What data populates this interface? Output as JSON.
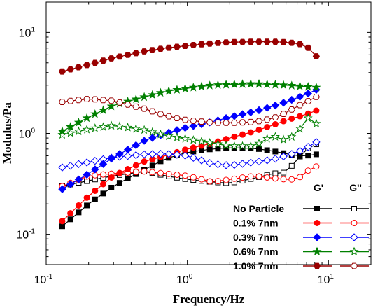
{
  "chart_data": {
    "type": "scatter",
    "xlabel": "Frequency/Hz",
    "ylabel": "Modulus/Pa",
    "x_scale": "log",
    "y_scale": "log",
    "xlim": [
      0.1,
      20
    ],
    "ylim": [
      0.05,
      20
    ],
    "x_ticks": [
      {
        "value": 0.1,
        "base": "10",
        "exp": "-1"
      },
      {
        "value": 1,
        "base": "10",
        "exp": "0"
      },
      {
        "value": 10,
        "base": "10",
        "exp": "1"
      }
    ],
    "y_ticks": [
      {
        "value": 0.1,
        "base": "10",
        "exp": "-1"
      },
      {
        "value": 1,
        "base": "10",
        "exp": "0"
      },
      {
        "value": 10,
        "base": "10",
        "exp": "1"
      }
    ],
    "legend": {
      "placement": "bottom-right",
      "col_headers": [
        "G'",
        "G''"
      ]
    },
    "series": [
      {
        "name": "No Particle",
        "color": "#000000",
        "marker": "square",
        "gp": [
          [
            0.13,
            0.12
          ],
          [
            0.2,
            0.2
          ],
          [
            0.3,
            0.3
          ],
          [
            0.5,
            0.44
          ],
          [
            0.7,
            0.56
          ],
          [
            1,
            0.65
          ],
          [
            1.5,
            0.7
          ],
          [
            2,
            0.72
          ],
          [
            3,
            0.71
          ],
          [
            4,
            0.67
          ],
          [
            5,
            0.63
          ],
          [
            6,
            0.6
          ],
          [
            7,
            0.6
          ],
          [
            8.2,
            0.62
          ]
        ],
        "gpp": [
          [
            0.13,
            0.3
          ],
          [
            0.2,
            0.34
          ],
          [
            0.3,
            0.38
          ],
          [
            0.5,
            0.42
          ],
          [
            0.7,
            0.38
          ],
          [
            1,
            0.35
          ],
          [
            1.5,
            0.33
          ],
          [
            2,
            0.32
          ],
          [
            3,
            0.36
          ],
          [
            4,
            0.4
          ],
          [
            5,
            0.41
          ],
          [
            6,
            0.55
          ],
          [
            7,
            0.7
          ],
          [
            8.2,
            0.78
          ]
        ]
      },
      {
        "name": "0.1% 7nm",
        "color": "#ff0000",
        "marker": "circle",
        "gp": [
          [
            0.13,
            0.135
          ],
          [
            0.2,
            0.24
          ],
          [
            0.3,
            0.38
          ],
          [
            0.5,
            0.53
          ],
          [
            0.7,
            0.6
          ],
          [
            1,
            0.7
          ],
          [
            1.5,
            0.8
          ],
          [
            2,
            0.9
          ],
          [
            3,
            1.05
          ],
          [
            4,
            1.2
          ],
          [
            5,
            1.35
          ],
          [
            6,
            1.45
          ],
          [
            7,
            1.55
          ],
          [
            8.2,
            1.68
          ]
        ],
        "gpp": [
          [
            0.13,
            0.3
          ],
          [
            0.2,
            0.38
          ],
          [
            0.3,
            0.4
          ],
          [
            0.5,
            0.42
          ],
          [
            0.7,
            0.4
          ],
          [
            1,
            0.38
          ],
          [
            1.5,
            0.33
          ],
          [
            2,
            0.35
          ],
          [
            3,
            0.38
          ],
          [
            4,
            0.36
          ],
          [
            5,
            0.35
          ],
          [
            6,
            0.35
          ],
          [
            7,
            0.42
          ],
          [
            8.2,
            0.47
          ]
        ]
      },
      {
        "name": "0.3% 7nm",
        "color": "#0000ff",
        "marker": "diamond",
        "gp": [
          [
            0.13,
            0.28
          ],
          [
            0.2,
            0.4
          ],
          [
            0.3,
            0.58
          ],
          [
            0.5,
            0.85
          ],
          [
            0.7,
            1.0
          ],
          [
            1,
            1.15
          ],
          [
            1.5,
            1.3
          ],
          [
            2,
            1.45
          ],
          [
            3,
            1.65
          ],
          [
            4,
            1.85
          ],
          [
            5,
            2.05
          ],
          [
            6,
            2.25
          ],
          [
            7,
            2.45
          ],
          [
            8.2,
            2.7
          ]
        ],
        "gpp": [
          [
            0.13,
            0.46
          ],
          [
            0.2,
            0.52
          ],
          [
            0.3,
            0.58
          ],
          [
            0.5,
            0.62
          ],
          [
            0.7,
            0.63
          ],
          [
            1,
            0.6
          ],
          [
            1.5,
            0.5
          ],
          [
            2,
            0.48
          ],
          [
            3,
            0.52
          ],
          [
            4,
            0.55
          ],
          [
            5,
            0.6
          ],
          [
            6,
            0.65
          ],
          [
            7,
            0.72
          ],
          [
            8.2,
            0.82
          ]
        ]
      },
      {
        "name": "0.6% 7nm",
        "color": "#008000",
        "marker": "star",
        "gp": [
          [
            0.13,
            1.05
          ],
          [
            0.2,
            1.45
          ],
          [
            0.3,
            1.9
          ],
          [
            0.5,
            2.3
          ],
          [
            0.7,
            2.6
          ],
          [
            1,
            2.8
          ],
          [
            1.5,
            3.0
          ],
          [
            2,
            3.05
          ],
          [
            3,
            3.1
          ],
          [
            4,
            3.05
          ],
          [
            5,
            3.0
          ],
          [
            6,
            2.95
          ],
          [
            7,
            2.9
          ],
          [
            8.2,
            2.85
          ]
        ],
        "gpp": [
          [
            0.13,
            0.97
          ],
          [
            0.2,
            1.1
          ],
          [
            0.3,
            1.2
          ],
          [
            0.5,
            1.08
          ],
          [
            0.7,
            0.95
          ],
          [
            1,
            0.88
          ],
          [
            1.5,
            0.8
          ],
          [
            2,
            0.75
          ],
          [
            3,
            0.75
          ],
          [
            4,
            0.95
          ],
          [
            5,
            0.85
          ],
          [
            6,
            1.0
          ],
          [
            7,
            1.45
          ],
          [
            8.2,
            1.25
          ]
        ]
      },
      {
        "name": "1.0% 7nm",
        "color": "#990000",
        "marker": "hexagon",
        "gp": [
          [
            0.13,
            4.1
          ],
          [
            0.2,
            4.8
          ],
          [
            0.3,
            5.6
          ],
          [
            0.5,
            6.5
          ],
          [
            0.7,
            7.0
          ],
          [
            1,
            7.4
          ],
          [
            1.5,
            7.8
          ],
          [
            2,
            8.0
          ],
          [
            3,
            8.1
          ],
          [
            4,
            8.1
          ],
          [
            5,
            8.0
          ],
          [
            6,
            7.8
          ],
          [
            7,
            7.3
          ],
          [
            8.2,
            5.8
          ]
        ],
        "gpp": [
          [
            0.13,
            2.05
          ],
          [
            0.2,
            2.2
          ],
          [
            0.3,
            2.1
          ],
          [
            0.5,
            1.75
          ],
          [
            0.7,
            1.5
          ],
          [
            1,
            1.35
          ],
          [
            1.5,
            1.28
          ],
          [
            2,
            1.27
          ],
          [
            3,
            1.3
          ],
          [
            4,
            1.4
          ],
          [
            5,
            1.6
          ],
          [
            6,
            1.85
          ],
          [
            7,
            2.05
          ],
          [
            8.2,
            2.3
          ]
        ]
      }
    ]
  }
}
